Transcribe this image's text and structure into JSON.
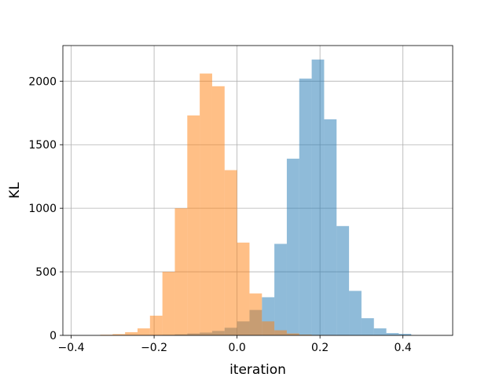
{
  "chart_data": {
    "type": "bar",
    "subtype": "overlaid-histogram",
    "title": "",
    "xlabel": "iteration",
    "ylabel": "KL",
    "xlim": [
      -0.42,
      0.52
    ],
    "ylim": [
      0,
      2280
    ],
    "xticks": [
      -0.4,
      -0.2,
      0.0,
      0.2,
      0.4
    ],
    "xtick_labels": [
      "−0.4",
      "−0.2",
      "0.0",
      "0.2",
      "0.4"
    ],
    "yticks": [
      0,
      500,
      1000,
      1500,
      2000
    ],
    "ytick_labels": [
      "0",
      "500",
      "1000",
      "1500",
      "2000"
    ],
    "grid": true,
    "legend": "none",
    "series": [
      {
        "color": "#1f77b4",
        "alpha": 0.5,
        "bin_edges": [
          -0.21,
          -0.18,
          -0.15,
          -0.12,
          -0.09,
          -0.06,
          -0.03,
          0.0,
          0.03,
          0.06,
          0.09,
          0.12,
          0.15,
          0.18,
          0.21,
          0.24,
          0.27,
          0.3,
          0.33,
          0.36,
          0.39,
          0.42
        ],
        "counts": [
          2,
          4,
          8,
          15,
          22,
          35,
          60,
          110,
          200,
          300,
          720,
          1390,
          2020,
          2170,
          1700,
          860,
          350,
          135,
          55,
          18,
          12
        ]
      },
      {
        "color": "#ff7f0e",
        "alpha": 0.5,
        "bin_edges": [
          -0.33,
          -0.3,
          -0.27,
          -0.24,
          -0.21,
          -0.18,
          -0.15,
          -0.12,
          -0.09,
          -0.06,
          -0.03,
          0.0,
          0.03,
          0.06,
          0.09,
          0.12,
          0.15,
          0.18,
          0.21,
          0.24,
          0.27
        ],
        "counts": [
          5,
          10,
          25,
          55,
          155,
          500,
          1000,
          1730,
          2060,
          1960,
          1300,
          730,
          330,
          110,
          40,
          15,
          6,
          3,
          2,
          1
        ]
      }
    ]
  }
}
